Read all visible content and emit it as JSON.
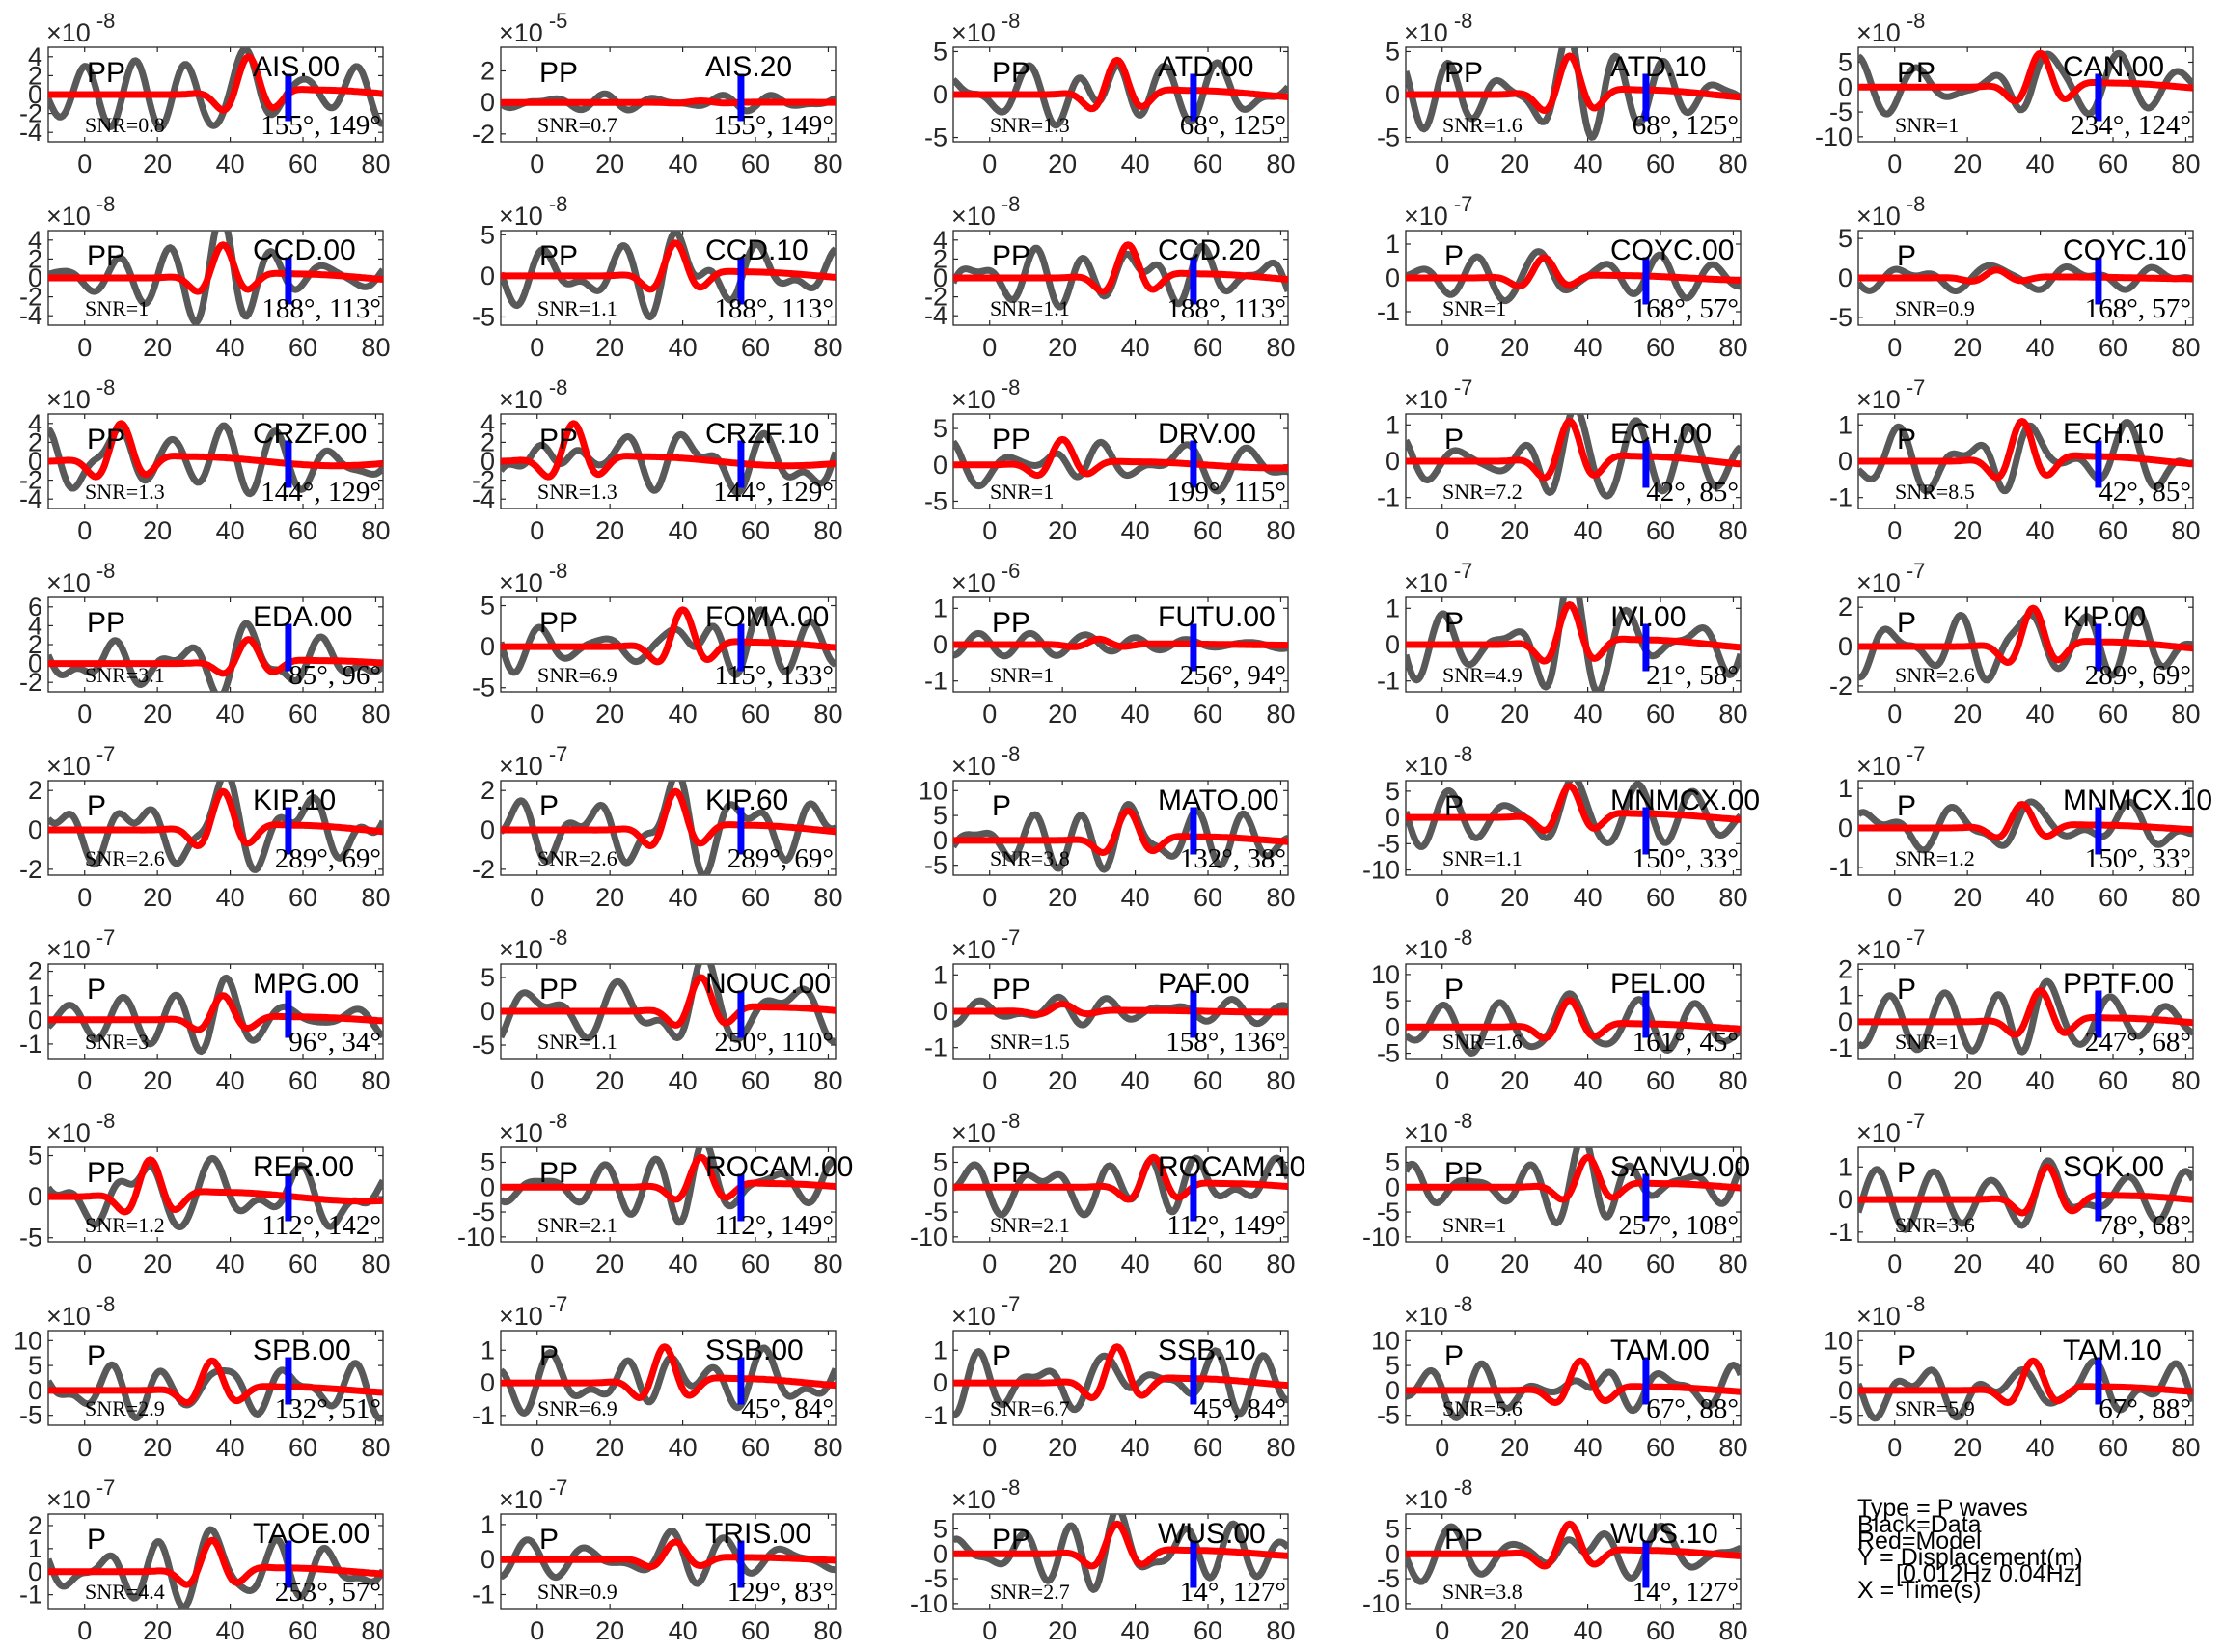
{
  "figure": {
    "legend": {
      "type_line": "Type = P waves",
      "data_line": "Black=Data",
      "model_line": "Red=Model",
      "y_line": "Y = Displacement(m)",
      "band_line": "[0.012Hz 0.04Hz]",
      "x_line": "X = Time(s)"
    }
  },
  "chart_data": {
    "type": "line",
    "colors": {
      "data": "#595959",
      "model": "#ff0000",
      "pick": "#0000ff"
    },
    "xlim": [
      -10,
      82
    ],
    "xticks": [
      "0",
      "20",
      "40",
      "60",
      "80"
    ],
    "pick_time": 56,
    "panels": [
      {
        "station": "AIS.00",
        "phase": "PP",
        "snr": "SNR=0.8",
        "angles": "155°, 149°",
        "exp": "-8",
        "yticks": [
          "4",
          "2",
          "0",
          "-2",
          "-4"
        ],
        "ylim": [
          -5,
          5
        ],
        "amp": 4,
        "peak": 45
      },
      {
        "station": "AIS.20",
        "phase": "PP",
        "snr": "SNR=0.7",
        "angles": "155°, 149°",
        "exp": "-5",
        "yticks": [
          "2",
          "0",
          "-2"
        ],
        "ylim": [
          -2.5,
          3.5
        ],
        "amp": 0.1,
        "peak": 45
      },
      {
        "station": "ATD.00",
        "phase": "PP",
        "snr": "SNR=1.3",
        "angles": "68°, 125°",
        "exp": "-8",
        "yticks": [
          "5",
          "0",
          "-5"
        ],
        "ylim": [
          -5.5,
          5.5
        ],
        "amp": 4,
        "peak": 35
      },
      {
        "station": "ATD.10",
        "phase": "PP",
        "snr": "SNR=1.6",
        "angles": "68°, 125°",
        "exp": "-8",
        "yticks": [
          "5",
          "0",
          "-5"
        ],
        "ylim": [
          -5.5,
          5.5
        ],
        "amp": 4.5,
        "peak": 35
      },
      {
        "station": "CAN.00",
        "phase": "PP",
        "snr": "SNR=1",
        "angles": "234°, 124°",
        "exp": "-8",
        "yticks": [
          "5",
          "0",
          "-5",
          "-10"
        ],
        "ylim": [
          -11,
          8
        ],
        "amp": 7,
        "peak": 40
      },
      {
        "station": "CCD.00",
        "phase": "PP",
        "snr": "SNR=1",
        "angles": "188°, 113°",
        "exp": "-8",
        "yticks": [
          "4",
          "2",
          "0",
          "-2",
          "-4"
        ],
        "ylim": [
          -5,
          5
        ],
        "amp": 3.5,
        "peak": 38
      },
      {
        "station": "CCD.10",
        "phase": "PP",
        "snr": "SNR=1.1",
        "angles": "188°, 113°",
        "exp": "-8",
        "yticks": [
          "5",
          "0",
          "-5"
        ],
        "ylim": [
          -6,
          5.5
        ],
        "amp": 4,
        "peak": 38
      },
      {
        "station": "CCD.20",
        "phase": "PP",
        "snr": "SNR=1.1",
        "angles": "188°, 113°",
        "exp": "-8",
        "yticks": [
          "4",
          "2",
          "0",
          "-2",
          "-4"
        ],
        "ylim": [
          -5,
          5
        ],
        "amp": 3.5,
        "peak": 38
      },
      {
        "station": "COYC.00",
        "phase": "P",
        "snr": "SNR=1",
        "angles": "168°, 57°",
        "exp": "-7",
        "yticks": [
          "1",
          "0",
          "-1"
        ],
        "ylim": [
          -1.4,
          1.4
        ],
        "amp": 0.6,
        "peak": 28
      },
      {
        "station": "COYC.10",
        "phase": "P",
        "snr": "SNR=0.9",
        "angles": "168°, 57°",
        "exp": "-8",
        "yticks": [
          "5",
          "0",
          "-5"
        ],
        "ylim": [
          -6,
          6
        ],
        "amp": 1,
        "peak": 28
      },
      {
        "station": "CRZF.00",
        "phase": "PP",
        "snr": "SNR=1.3",
        "angles": "144°, 129°",
        "exp": "-8",
        "yticks": [
          "4",
          "2",
          "0",
          "-2",
          "-4"
        ],
        "ylim": [
          -5,
          5
        ],
        "amp": 4,
        "peak": 10
      },
      {
        "station": "CRZF.10",
        "phase": "PP",
        "snr": "SNR=1.3",
        "angles": "144°, 129°",
        "exp": "-8",
        "yticks": [
          "4",
          "2",
          "0",
          "-2",
          "-4"
        ],
        "ylim": [
          -5,
          5
        ],
        "amp": 4,
        "peak": 10
      },
      {
        "station": "DRV.00",
        "phase": "PP",
        "snr": "SNR=1",
        "angles": "199°, 115°",
        "exp": "-8",
        "yticks": [
          "5",
          "0",
          "-5"
        ],
        "ylim": [
          -6,
          7
        ],
        "amp": 3.5,
        "peak": 20
      },
      {
        "station": "ECH.00",
        "phase": "P",
        "snr": "SNR=7.2",
        "angles": "42°, 85°",
        "exp": "-7",
        "yticks": [
          "1",
          "0",
          "-1"
        ],
        "ylim": [
          -1.3,
          1.3
        ],
        "amp": 1.1,
        "peak": 35
      },
      {
        "station": "ECH.10",
        "phase": "P",
        "snr": "SNR=8.5",
        "angles": "42°, 85°",
        "exp": "-7",
        "yticks": [
          "1",
          "0",
          "-1"
        ],
        "ylim": [
          -1.3,
          1.3
        ],
        "amp": 1.1,
        "peak": 35
      },
      {
        "station": "EDA.00",
        "phase": "PP",
        "snr": "SNR=3.1",
        "angles": "85°, 96°",
        "exp": "-8",
        "yticks": [
          "6",
          "4",
          "2",
          "0",
          "-2"
        ],
        "ylim": [
          -3,
          7
        ],
        "amp": 4.5,
        "peak": 45
      },
      {
        "station": "FOMA.00",
        "phase": "PP",
        "snr": "SNR=6.9",
        "angles": "115°, 133°",
        "exp": "-8",
        "yticks": [
          "5",
          "0",
          "-5"
        ],
        "ylim": [
          -5.5,
          6
        ],
        "amp": 4.5,
        "peak": 40
      },
      {
        "station": "FUTU.00",
        "phase": "PP",
        "snr": "SNR=1",
        "angles": "256°, 94°",
        "exp": "-6",
        "yticks": [
          "1",
          "0",
          "-1"
        ],
        "ylim": [
          -1.3,
          1.3
        ],
        "amp": 0.15,
        "peak": 30
      },
      {
        "station": "IVI.00",
        "phase": "P",
        "snr": "SNR=4.9",
        "angles": "21°, 58°",
        "exp": "-7",
        "yticks": [
          "1",
          "0",
          "-1"
        ],
        "ylim": [
          -1.3,
          1.3
        ],
        "amp": 1.1,
        "peak": 35
      },
      {
        "station": "KIP.00",
        "phase": "P",
        "snr": "SNR=2.6",
        "angles": "289°, 69°",
        "exp": "-7",
        "yticks": [
          "2",
          "0",
          "-2"
        ],
        "ylim": [
          -2.3,
          2.5
        ],
        "amp": 2,
        "peak": 38
      },
      {
        "station": "KIP.10",
        "phase": "P",
        "snr": "SNR=2.6",
        "angles": "289°, 69°",
        "exp": "-7",
        "yticks": [
          "2",
          "0",
          "-2"
        ],
        "ylim": [
          -2.3,
          2.5
        ],
        "amp": 2,
        "peak": 38
      },
      {
        "station": "KIP.60",
        "phase": "P",
        "snr": "SNR=2.6",
        "angles": "289°, 69°",
        "exp": "-7",
        "yticks": [
          "2",
          "0",
          "-2"
        ],
        "ylim": [
          -2.3,
          2.5
        ],
        "amp": 2,
        "peak": 38
      },
      {
        "station": "MATO.00",
        "phase": "P",
        "snr": "SNR=3.8",
        "angles": "132°, 38°",
        "exp": "-8",
        "yticks": [
          "10",
          "5",
          "0",
          "-5"
        ],
        "ylim": [
          -7,
          12
        ],
        "amp": 8,
        "peak": 38
      },
      {
        "station": "MNMCX.00",
        "phase": "P",
        "snr": "SNR=1.1",
        "angles": "150°, 33°",
        "exp": "-8",
        "yticks": [
          "5",
          "0",
          "-5",
          "-10"
        ],
        "ylim": [
          -11,
          7
        ],
        "amp": 6,
        "peak": 35
      },
      {
        "station": "MNMCX.10",
        "phase": "P",
        "snr": "SNR=1.2",
        "angles": "150°, 33°",
        "exp": "-7",
        "yticks": [
          "1",
          "0",
          "-1"
        ],
        "ylim": [
          -1.2,
          1.2
        ],
        "amp": 0.6,
        "peak": 35
      },
      {
        "station": "MPG.00",
        "phase": "P",
        "snr": "SNR=3",
        "angles": "96°, 34°",
        "exp": "-7",
        "yticks": [
          "2",
          "1",
          "0",
          "-1"
        ],
        "ylim": [
          -1.6,
          2.3
        ],
        "amp": 1,
        "peak": 38
      },
      {
        "station": "NOUC.00",
        "phase": "PP",
        "snr": "SNR=1.1",
        "angles": "250°, 110°",
        "exp": "-8",
        "yticks": [
          "5",
          "0",
          "-5"
        ],
        "ylim": [
          -7,
          7
        ],
        "amp": 5,
        "peak": 45
      },
      {
        "station": "PAF.00",
        "phase": "PP",
        "snr": "SNR=1.5",
        "angles": "158°, 136°",
        "exp": "-7",
        "yticks": [
          "1",
          "0",
          "-1"
        ],
        "ylim": [
          -1.3,
          1.3
        ],
        "amp": 0.2,
        "peak": 20
      },
      {
        "station": "PEL.00",
        "phase": "P",
        "snr": "SNR=1.6",
        "angles": "161°, 45°",
        "exp": "-8",
        "yticks": [
          "10",
          "5",
          "0",
          "-5"
        ],
        "ylim": [
          -6,
          12
        ],
        "amp": 9,
        "peak": 35
      },
      {
        "station": "PPTF.00",
        "phase": "P",
        "snr": "SNR=1",
        "angles": "247°, 68°",
        "exp": "-7",
        "yticks": [
          "2",
          "1",
          "0",
          "-1"
        ],
        "ylim": [
          -1.4,
          2.2
        ],
        "amp": 1.7,
        "peak": 40
      },
      {
        "station": "RER.00",
        "phase": "PP",
        "snr": "SNR=1.2",
        "angles": "112°, 142°",
        "exp": "-8",
        "yticks": [
          "5",
          "0",
          "-5"
        ],
        "ylim": [
          -5.5,
          6
        ],
        "amp": 4.5,
        "peak": 18
      },
      {
        "station": "ROCAM.00",
        "phase": "PP",
        "snr": "SNR=2.1",
        "angles": "112°, 149°",
        "exp": "-8",
        "yticks": [
          "5",
          "0",
          "-5",
          "-10"
        ],
        "ylim": [
          -11,
          8
        ],
        "amp": 6,
        "peak": 45
      },
      {
        "station": "ROCAM.10",
        "phase": "PP",
        "snr": "SNR=2.1",
        "angles": "112°, 149°",
        "exp": "-8",
        "yticks": [
          "5",
          "0",
          "-5",
          "-10"
        ],
        "ylim": [
          -11,
          8
        ],
        "amp": 6,
        "peak": 45
      },
      {
        "station": "SANVU.00",
        "phase": "PP",
        "snr": "SNR=1",
        "angles": "257°, 108°",
        "exp": "-8",
        "yticks": [
          "5",
          "0",
          "-5",
          "-10"
        ],
        "ylim": [
          -11,
          8
        ],
        "amp": 6,
        "peak": 40
      },
      {
        "station": "SOK.00",
        "phase": "P",
        "snr": "SNR=3.6",
        "angles": "78°, 68°",
        "exp": "-7",
        "yticks": [
          "1",
          "0",
          "-1"
        ],
        "ylim": [
          -1.3,
          1.6
        ],
        "amp": 1,
        "peak": 42
      },
      {
        "station": "SPB.00",
        "phase": "P",
        "snr": "SNR=2.9",
        "angles": "132°, 51°",
        "exp": "-8",
        "yticks": [
          "10",
          "5",
          "0",
          "-5"
        ],
        "ylim": [
          -7,
          12
        ],
        "amp": 9,
        "peak": 35
      },
      {
        "station": "SSB.00",
        "phase": "P",
        "snr": "SNR=6.9",
        "angles": "45°, 84°",
        "exp": "-7",
        "yticks": [
          "1",
          "0",
          "-1"
        ],
        "ylim": [
          -1.3,
          1.6
        ],
        "amp": 1.3,
        "peak": 35
      },
      {
        "station": "SSB.10",
        "phase": "P",
        "snr": "SNR=6.7",
        "angles": "45°, 84°",
        "exp": "-7",
        "yticks": [
          "1",
          "0",
          "-1"
        ],
        "ylim": [
          -1.3,
          1.6
        ],
        "amp": 1.3,
        "peak": 35
      },
      {
        "station": "TAM.00",
        "phase": "P",
        "snr": "SNR=5.6",
        "angles": "67°, 88°",
        "exp": "-8",
        "yticks": [
          "10",
          "5",
          "0",
          "-5"
        ],
        "ylim": [
          -7,
          12
        ],
        "amp": 10,
        "peak": 38
      },
      {
        "station": "TAM.10",
        "phase": "P",
        "snr": "SNR=5.9",
        "angles": "67°, 88°",
        "exp": "-8",
        "yticks": [
          "10",
          "5",
          "0",
          "-5"
        ],
        "ylim": [
          -7,
          12
        ],
        "amp": 10,
        "peak": 38
      },
      {
        "station": "TAOE.00",
        "phase": "P",
        "snr": "SNR=4.4",
        "angles": "253°, 57°",
        "exp": "-7",
        "yticks": [
          "2",
          "1",
          "0",
          "-1"
        ],
        "ylim": [
          -1.6,
          2.5
        ],
        "amp": 2,
        "peak": 35
      },
      {
        "station": "TRIS.00",
        "phase": "P",
        "snr": "SNR=0.9",
        "angles": "129°, 83°",
        "exp": "-7",
        "yticks": [
          "1",
          "0",
          "-1"
        ],
        "ylim": [
          -1.4,
          1.3
        ],
        "amp": 0.5,
        "peak": 38
      },
      {
        "station": "WUS.00",
        "phase": "PP",
        "snr": "SNR=2.7",
        "angles": "14°, 127°",
        "exp": "-8",
        "yticks": [
          "5",
          "0",
          "-5",
          "-10"
        ],
        "ylim": [
          -11,
          8
        ],
        "amp": 6,
        "peak": 35
      },
      {
        "station": "WUS.10",
        "phase": "PP",
        "snr": "SNR=3.8",
        "angles": "14°, 127°",
        "exp": "-8",
        "yticks": [
          "5",
          "0",
          "-5",
          "-10"
        ],
        "ylim": [
          -11,
          8
        ],
        "amp": 6,
        "peak": 35
      }
    ]
  }
}
